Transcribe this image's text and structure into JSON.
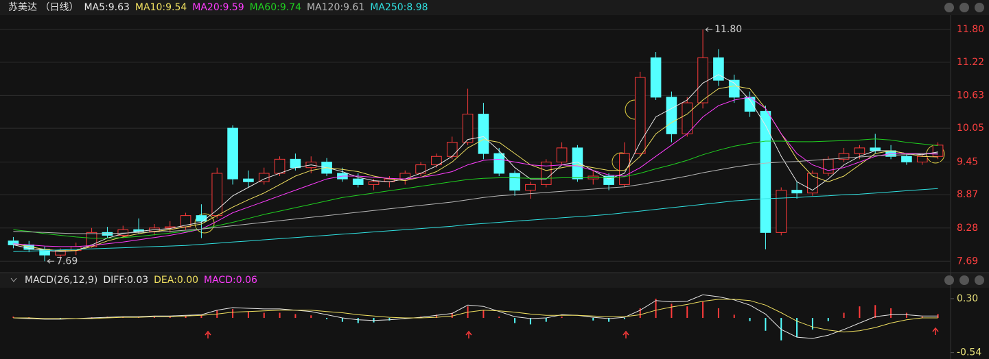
{
  "chart_data": [
    {
      "type": "candlestick",
      "title": "苏美达 （日线）",
      "ylim": [
        7.56,
        12.02
      ],
      "yticks": [
        {
          "value": 11.8,
          "label": "11.80"
        },
        11.22,
        10.63,
        10.05,
        9.45,
        8.87,
        8.28,
        7.69
      ],
      "grid": true,
      "up_color": "#ff3b3b",
      "down_color": "#54ffff",
      "candles": {
        "open": [
          8.05,
          7.98,
          7.9,
          7.8,
          7.88,
          7.95,
          8.2,
          8.15,
          8.25,
          8.22,
          8.28,
          8.3,
          8.5,
          8.5,
          10.05,
          9.15,
          9.1,
          9.25,
          9.5,
          9.35,
          9.45,
          9.25,
          9.15,
          9.05,
          9.1,
          9.15,
          9.25,
          9.4,
          9.55,
          9.8,
          10.3,
          9.6,
          9.25,
          8.95,
          9.05,
          9.45,
          9.7,
          9.15,
          9.2,
          9.05,
          9.6,
          11.3,
          10.6,
          9.95,
          10.5,
          11.3,
          10.9,
          10.6,
          10.35,
          8.2,
          8.95,
          8.9,
          9.25,
          9.5,
          9.6,
          9.7,
          9.65,
          9.55,
          9.45,
          9.55
        ],
        "high": [
          8.12,
          8.05,
          7.95,
          7.92,
          8.02,
          8.28,
          8.3,
          8.32,
          8.45,
          8.35,
          8.4,
          8.55,
          8.7,
          9.35,
          10.1,
          9.3,
          9.35,
          9.55,
          9.6,
          9.55,
          9.52,
          9.35,
          9.25,
          9.15,
          9.2,
          9.3,
          9.45,
          9.6,
          9.9,
          10.75,
          10.5,
          9.7,
          9.3,
          9.1,
          9.5,
          9.8,
          9.75,
          9.3,
          9.25,
          9.8,
          11.05,
          11.4,
          10.7,
          10.6,
          11.8,
          11.45,
          11.0,
          10.7,
          10.45,
          9.0,
          9.1,
          9.3,
          9.55,
          9.7,
          9.75,
          9.95,
          9.75,
          9.6,
          9.6,
          9.8
        ],
        "low": [
          7.92,
          7.85,
          7.69,
          7.76,
          7.8,
          7.93,
          8.1,
          8.1,
          8.18,
          8.15,
          8.2,
          8.25,
          8.1,
          8.45,
          9.05,
          9.0,
          9.05,
          9.2,
          9.3,
          9.25,
          9.2,
          9.1,
          9.0,
          8.95,
          9.0,
          9.05,
          9.2,
          9.35,
          9.5,
          9.75,
          9.5,
          9.2,
          8.85,
          8.8,
          9.0,
          9.4,
          9.1,
          9.05,
          8.95,
          9.0,
          9.55,
          10.55,
          9.8,
          9.9,
          10.4,
          10.8,
          10.5,
          10.25,
          7.9,
          8.15,
          8.8,
          8.85,
          9.2,
          9.45,
          9.5,
          9.6,
          9.5,
          9.4,
          9.4,
          9.5
        ],
        "close": [
          7.98,
          7.9,
          7.8,
          7.88,
          7.95,
          8.2,
          8.15,
          8.25,
          8.22,
          8.28,
          8.3,
          8.5,
          8.4,
          9.25,
          9.15,
          9.1,
          9.25,
          9.5,
          9.35,
          9.45,
          9.25,
          9.15,
          9.05,
          9.1,
          9.15,
          9.25,
          9.4,
          9.55,
          9.8,
          10.3,
          9.6,
          9.25,
          8.95,
          9.05,
          9.45,
          9.7,
          9.15,
          9.2,
          9.05,
          9.6,
          10.95,
          10.6,
          9.95,
          10.5,
          11.3,
          10.9,
          10.6,
          10.35,
          8.2,
          8.95,
          8.9,
          9.25,
          9.5,
          9.6,
          9.7,
          9.65,
          9.55,
          9.45,
          9.55,
          9.75
        ]
      },
      "series": [
        {
          "name": "MA5:9.63",
          "color": "#e8e8e8",
          "values": [
            7.98,
            7.92,
            7.88,
            7.86,
            7.88,
            7.98,
            8.1,
            8.18,
            8.22,
            8.25,
            8.27,
            8.33,
            8.38,
            8.6,
            8.85,
            9.0,
            9.15,
            9.25,
            9.35,
            9.4,
            9.35,
            9.28,
            9.18,
            9.12,
            9.1,
            9.15,
            9.25,
            9.38,
            9.55,
            9.85,
            9.9,
            9.65,
            9.35,
            9.15,
            9.15,
            9.4,
            9.45,
            9.3,
            9.15,
            9.25,
            9.8,
            10.25,
            10.4,
            10.55,
            10.85,
            11.0,
            10.85,
            10.55,
            10.1,
            9.55,
            9.1,
            8.95,
            9.15,
            9.4,
            9.55,
            9.65,
            9.65,
            9.6,
            9.58,
            9.63
          ]
        },
        {
          "name": "MA10:9.54",
          "color": "#f0e060",
          "values": [
            8.0,
            7.95,
            7.9,
            7.88,
            7.88,
            7.95,
            8.05,
            8.12,
            8.18,
            8.22,
            8.25,
            8.3,
            8.35,
            8.5,
            8.65,
            8.78,
            8.9,
            9.05,
            9.2,
            9.3,
            9.35,
            9.32,
            9.28,
            9.2,
            9.15,
            9.12,
            9.18,
            9.28,
            9.45,
            9.7,
            9.85,
            9.8,
            9.6,
            9.4,
            9.3,
            9.35,
            9.4,
            9.35,
            9.3,
            9.3,
            9.55,
            9.95,
            10.15,
            10.3,
            10.55,
            10.75,
            10.8,
            10.75,
            10.4,
            9.95,
            9.5,
            9.2,
            9.1,
            9.2,
            9.4,
            9.6,
            9.65,
            9.6,
            9.55,
            9.54
          ]
        },
        {
          "name": "MA20:9.59",
          "color": "#ff3cff",
          "values": [
            8.0,
            7.98,
            7.96,
            7.95,
            7.95,
            7.97,
            8.0,
            8.03,
            8.07,
            8.11,
            8.15,
            8.2,
            8.26,
            8.4,
            8.55,
            8.65,
            8.75,
            8.85,
            8.95,
            9.05,
            9.15,
            9.2,
            9.2,
            9.18,
            9.16,
            9.15,
            9.18,
            9.22,
            9.28,
            9.4,
            9.48,
            9.5,
            9.45,
            9.4,
            9.38,
            9.4,
            9.38,
            9.3,
            9.22,
            9.2,
            9.35,
            9.55,
            9.75,
            9.95,
            10.25,
            10.45,
            10.55,
            10.6,
            10.4,
            9.95,
            9.6,
            9.4,
            9.3,
            9.35,
            9.45,
            9.55,
            9.6,
            9.6,
            9.6,
            9.59
          ]
        },
        {
          "name": "MA60:9.74",
          "color": "#20d020",
          "values": [
            8.25,
            8.22,
            8.18,
            8.15,
            8.12,
            8.1,
            8.1,
            8.11,
            8.13,
            8.16,
            8.19,
            8.22,
            8.26,
            8.32,
            8.38,
            8.45,
            8.52,
            8.58,
            8.64,
            8.7,
            8.76,
            8.82,
            8.86,
            8.9,
            8.94,
            8.98,
            9.02,
            9.06,
            9.1,
            9.14,
            9.16,
            9.17,
            9.17,
            9.16,
            9.16,
            9.17,
            9.17,
            9.17,
            9.17,
            9.19,
            9.25,
            9.33,
            9.4,
            9.48,
            9.58,
            9.66,
            9.73,
            9.78,
            9.82,
            9.82,
            9.81,
            9.81,
            9.82,
            9.83,
            9.84,
            9.86,
            9.84,
            9.8,
            9.77,
            9.74
          ]
        },
        {
          "name": "MA120:9.61",
          "color": "#b8b8b8",
          "values": [
            8.22,
            8.21,
            8.2,
            8.19,
            8.18,
            8.18,
            8.18,
            8.19,
            8.2,
            8.21,
            8.22,
            8.24,
            8.26,
            8.29,
            8.32,
            8.35,
            8.38,
            8.41,
            8.44,
            8.47,
            8.5,
            8.53,
            8.56,
            8.59,
            8.62,
            8.65,
            8.68,
            8.71,
            8.74,
            8.78,
            8.82,
            8.85,
            8.87,
            8.89,
            8.91,
            8.93,
            8.95,
            8.97,
            8.99,
            9.01,
            9.05,
            9.1,
            9.15,
            9.2,
            9.26,
            9.31,
            9.36,
            9.4,
            9.43,
            9.45,
            9.46,
            9.48,
            9.5,
            9.52,
            9.54,
            9.56,
            9.57,
            9.58,
            9.6,
            9.61
          ]
        },
        {
          "name": "MA250:8.98",
          "color": "#30e0e0",
          "values": [
            7.86,
            7.87,
            7.88,
            7.89,
            7.9,
            7.91,
            7.92,
            7.93,
            7.94,
            7.95,
            7.96,
            7.97,
            7.99,
            8.01,
            8.03,
            8.05,
            8.07,
            8.09,
            8.11,
            8.13,
            8.15,
            8.17,
            8.19,
            8.21,
            8.23,
            8.25,
            8.27,
            8.29,
            8.31,
            8.34,
            8.36,
            8.38,
            8.4,
            8.42,
            8.44,
            8.46,
            8.48,
            8.5,
            8.52,
            8.55,
            8.58,
            8.61,
            8.64,
            8.67,
            8.7,
            8.73,
            8.76,
            8.78,
            8.8,
            8.81,
            8.82,
            8.84,
            8.85,
            8.87,
            8.88,
            8.9,
            8.92,
            8.94,
            8.96,
            8.98
          ]
        }
      ],
      "annotations": [
        {
          "value": 11.8,
          "label": "11.80"
        },
        {
          "value": 7.69,
          "label": "7.69"
        }
      ]
    },
    {
      "type": "macd",
      "title": "MACD(26,12,9)",
      "ylim": [
        -0.64,
        0.47
      ],
      "yticks": [
        {
          "value": 0.3,
          "label": "0.30"
        },
        -0.54
      ],
      "series": [
        {
          "name": "DIFF:0.03",
          "color": "#e8e8e8",
          "values": [
            0.0,
            -0.01,
            -0.02,
            -0.02,
            -0.01,
            0.0,
            0.01,
            0.02,
            0.02,
            0.03,
            0.03,
            0.04,
            0.05,
            0.12,
            0.16,
            0.15,
            0.14,
            0.14,
            0.12,
            0.1,
            0.05,
            0.0,
            -0.03,
            -0.04,
            -0.03,
            -0.01,
            0.01,
            0.04,
            0.07,
            0.2,
            0.18,
            0.1,
            0.02,
            -0.01,
            0.0,
            0.05,
            0.04,
            0.01,
            -0.01,
            0.01,
            0.12,
            0.27,
            0.25,
            0.26,
            0.36,
            0.33,
            0.28,
            0.2,
            0.06,
            -0.18,
            -0.3,
            -0.32,
            -0.27,
            -0.18,
            -0.08,
            0.02,
            0.05,
            0.05,
            0.03,
            0.03
          ]
        },
        {
          "name": "DEA:0.00",
          "color": "#f0e060",
          "values": [
            0.0,
            0.0,
            -0.01,
            -0.01,
            -0.01,
            -0.01,
            0.0,
            0.01,
            0.01,
            0.02,
            0.02,
            0.03,
            0.04,
            0.06,
            0.09,
            0.1,
            0.11,
            0.12,
            0.12,
            0.12,
            0.1,
            0.08,
            0.05,
            0.03,
            0.01,
            0.0,
            0.0,
            0.01,
            0.03,
            0.09,
            0.12,
            0.11,
            0.09,
            0.06,
            0.04,
            0.04,
            0.04,
            0.03,
            0.02,
            0.02,
            0.05,
            0.12,
            0.17,
            0.21,
            0.26,
            0.29,
            0.29,
            0.27,
            0.2,
            0.08,
            -0.05,
            -0.14,
            -0.19,
            -0.22,
            -0.2,
            -0.15,
            -0.08,
            -0.03,
            0.0,
            0.0
          ]
        }
      ],
      "histogram": {
        "name": "MACD:0.06",
        "color": "#ff3cff",
        "up_color": "#ff3b3b",
        "down_color": "#54ffff",
        "values": [
          0.02,
          0.01,
          0.0,
          -0.01,
          0.0,
          0.01,
          0.02,
          0.02,
          0.02,
          0.02,
          0.02,
          0.03,
          0.04,
          0.12,
          0.14,
          0.1,
          0.08,
          0.08,
          0.06,
          0.04,
          -0.02,
          -0.06,
          -0.08,
          -0.07,
          -0.04,
          -0.01,
          0.02,
          0.05,
          0.08,
          0.18,
          0.12,
          0.02,
          -0.08,
          -0.1,
          -0.06,
          0.02,
          0.0,
          -0.04,
          -0.06,
          -0.02,
          0.15,
          0.3,
          0.22,
          0.18,
          0.25,
          0.15,
          0.05,
          -0.05,
          -0.2,
          -0.35,
          -0.3,
          -0.18,
          -0.05,
          0.08,
          0.18,
          0.2,
          0.15,
          0.08,
          0.02,
          0.06
        ]
      }
    }
  ]
}
